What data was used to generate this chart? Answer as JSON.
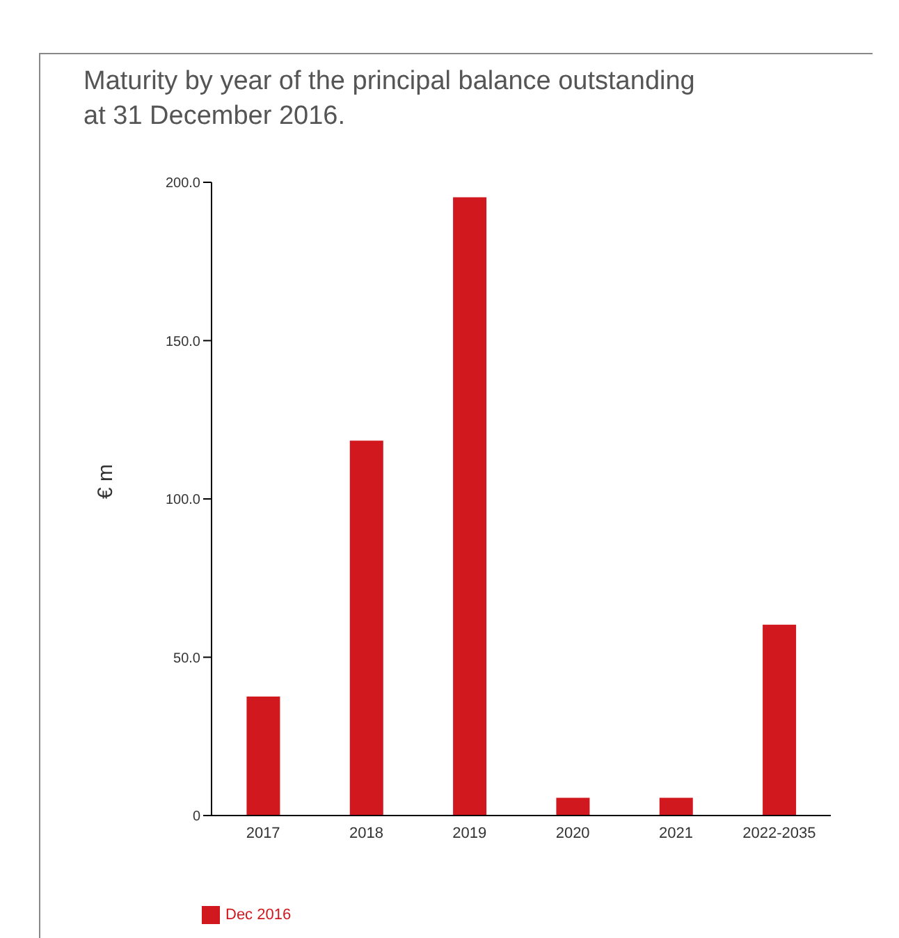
{
  "chart_data": {
    "type": "bar",
    "title": "Maturity by year of the principal balance outstanding\nat 31 December 2016.",
    "ylabel": "€ m",
    "categories": [
      "2017",
      "2018",
      "2019",
      "2020",
      "2021",
      "2022-2035"
    ],
    "series": [
      {
        "name": "Dec 2016",
        "color": "#d0181e",
        "values": [
          37.6,
          118.4,
          195.3,
          5.6,
          5.6,
          60.3
        ]
      }
    ],
    "ylim": [
      0,
      200
    ],
    "yticks": [
      0,
      {
        "value": 50,
        "label": "50.0"
      },
      {
        "value": 100,
        "label": "100.0"
      },
      {
        "value": 150,
        "label": "150.0"
      },
      {
        "value": 200,
        "label": "200.0"
      }
    ],
    "grid": false,
    "legend": "bottom left"
  }
}
